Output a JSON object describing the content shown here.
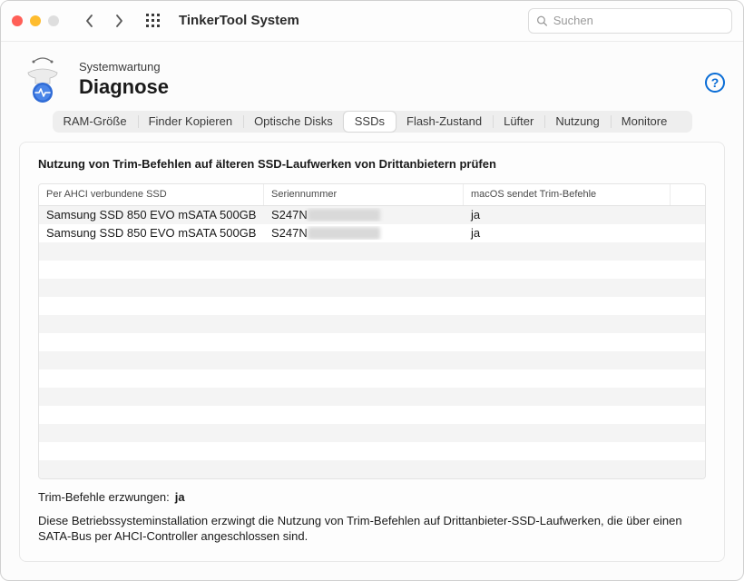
{
  "window": {
    "title": "TinkerTool System",
    "traffic_colors": {
      "close": "#ff5f57",
      "minimize": "#febc2e",
      "disabled": "#dedede"
    }
  },
  "search": {
    "placeholder": "Suchen"
  },
  "header": {
    "section": "Systemwartung",
    "page": "Diagnose"
  },
  "tabs": [
    {
      "id": "ram",
      "label": "RAM-Größe"
    },
    {
      "id": "finder",
      "label": "Finder Kopieren"
    },
    {
      "id": "optical",
      "label": "Optische Disks"
    },
    {
      "id": "ssds",
      "label": "SSDs",
      "active": true
    },
    {
      "id": "flash",
      "label": "Flash-Zustand"
    },
    {
      "id": "fans",
      "label": "Lüfter"
    },
    {
      "id": "usage",
      "label": "Nutzung"
    },
    {
      "id": "monitors",
      "label": "Monitore"
    }
  ],
  "panel": {
    "title": "Nutzung von Trim-Befehlen auf älteren SSD-Laufwerken von Drittanbietern prüfen",
    "columns": [
      "Per AHCI verbundene SSD",
      "Seriennummer",
      "macOS sendet Trim-Befehle"
    ],
    "rows": [
      {
        "device": "Samsung SSD 850 EVO mSATA 500GB",
        "serial_prefix": "S247N",
        "serial_blur_width": 80,
        "trim": "ja"
      },
      {
        "device": "Samsung SSD 850 EVO mSATA 500GB",
        "serial_prefix": "S247N",
        "serial_blur_width": 80,
        "trim": "ja"
      }
    ],
    "empty_row_count": 13,
    "footer_label": "Trim-Befehle erzwungen:",
    "footer_value": "ja",
    "footer_desc": "Diese Betriebssysteminstallation erzwingt die Nutzung von Trim-Befehlen auf Drittanbieter-SSD-Laufwerken, die über einen SATA-Bus per AHCI-Controller angeschlossen sind."
  },
  "help": {
    "glyph": "?"
  }
}
